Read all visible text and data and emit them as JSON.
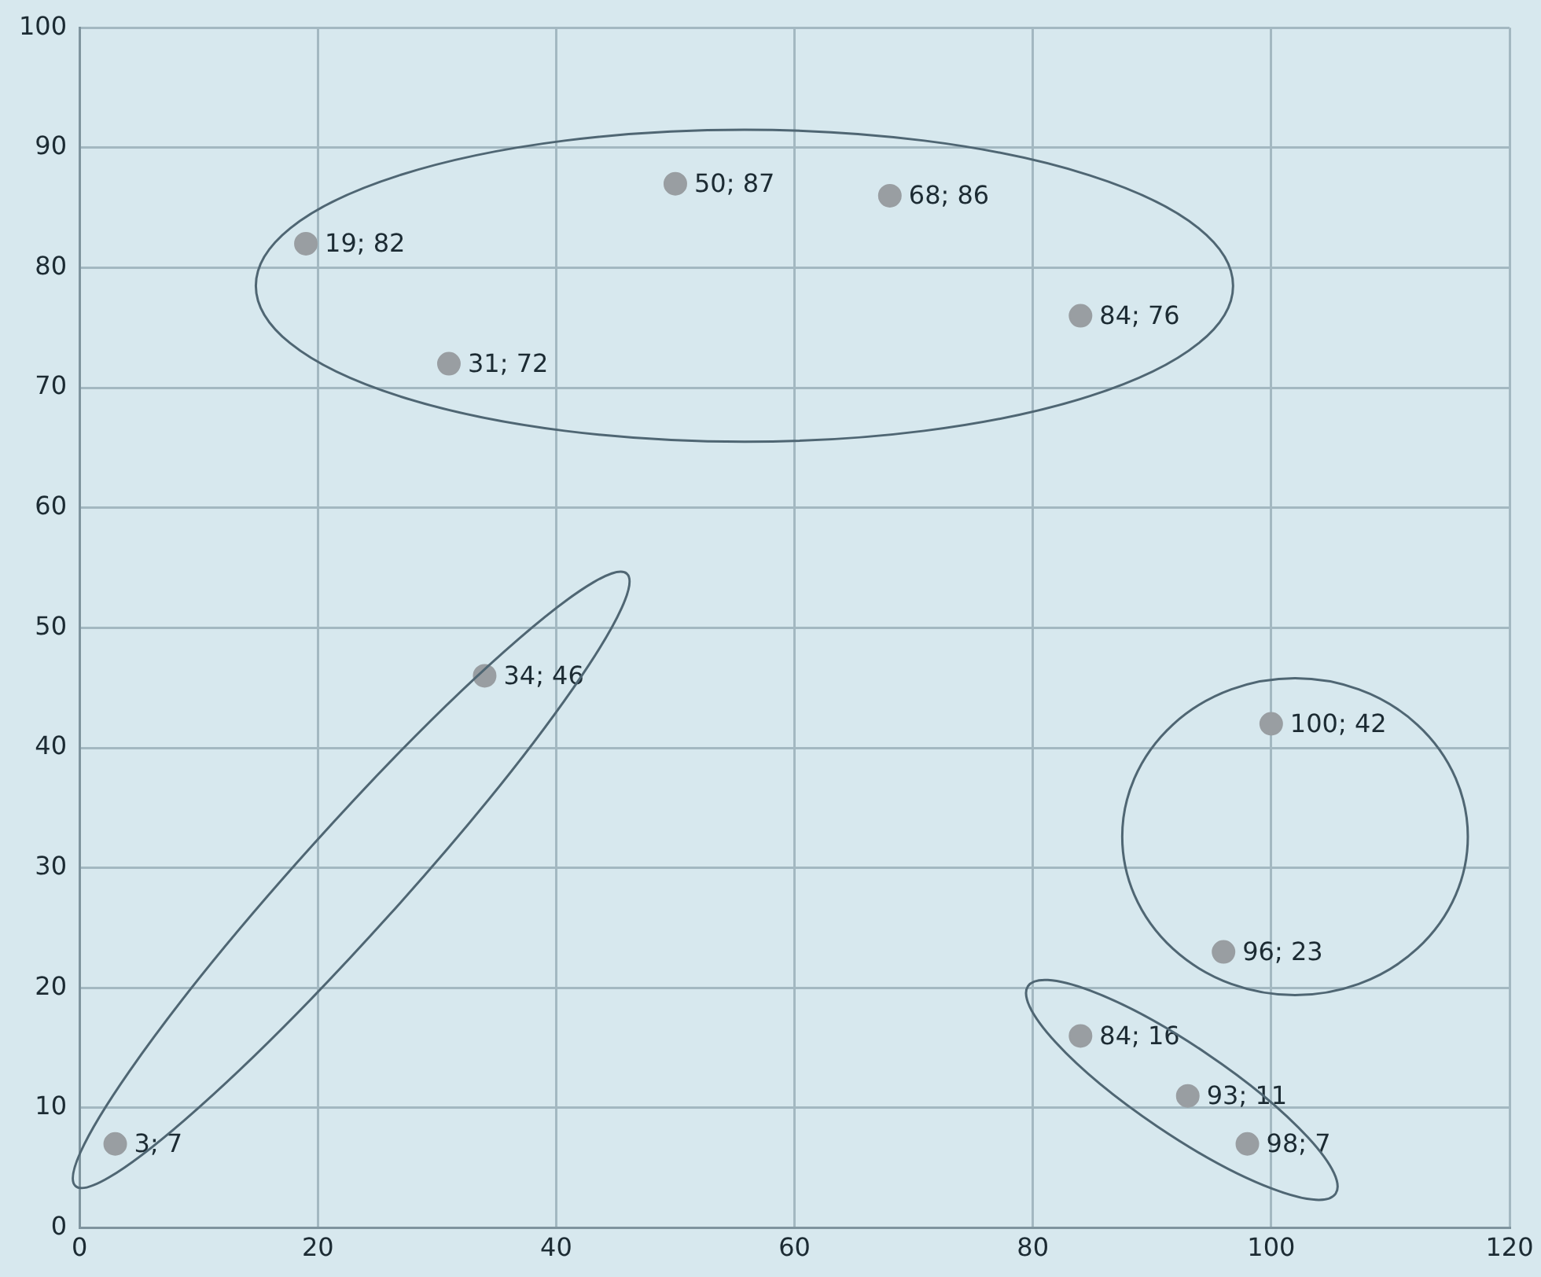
{
  "chart_data": {
    "type": "scatter",
    "x": [
      19,
      31,
      50,
      68,
      84,
      34,
      3,
      100,
      96,
      84,
      93,
      98
    ],
    "values": [
      82,
      72,
      87,
      86,
      76,
      46,
      7,
      42,
      23,
      16,
      11,
      7
    ],
    "value_labels": [
      "19; 82",
      "31; 72",
      "50; 87",
      "68; 86",
      "84; 76",
      "34; 46",
      "3; 7",
      "100; 42",
      "96; 23",
      "84; 16",
      "93; 11",
      "98; 7"
    ],
    "color": "#999ea2",
    "marker": "circle",
    "xlim": [
      0,
      120
    ],
    "xticks": [
      0,
      20,
      40,
      60,
      80,
      100,
      120
    ],
    "ylim": [
      0,
      100
    ],
    "yticks": [
      0,
      10,
      20,
      30,
      40,
      50,
      60,
      70,
      80,
      90,
      100
    ],
    "grid": true
  }
}
